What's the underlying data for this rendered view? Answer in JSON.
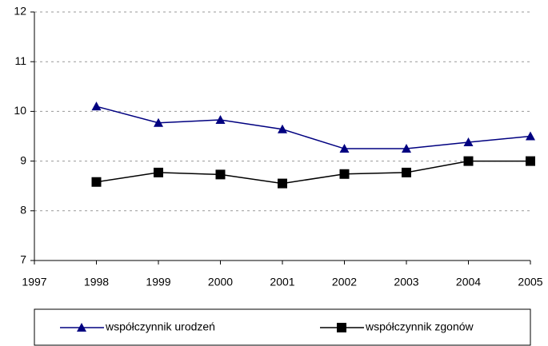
{
  "chart_data": {
    "type": "line",
    "x": [
      1998,
      1999,
      2000,
      2001,
      2002,
      2003,
      2004,
      2005
    ],
    "series": [
      {
        "name": "współczynnik urodzeń",
        "color": "#000080",
        "marker": "triangle",
        "values": [
          10.1,
          9.77,
          9.83,
          9.64,
          9.25,
          9.25,
          9.38,
          9.5
        ]
      },
      {
        "name": "współczynnik zgonów",
        "color": "#000000",
        "marker": "square",
        "values": [
          8.58,
          8.77,
          8.73,
          8.55,
          8.74,
          8.77,
          9.0,
          9.0
        ]
      }
    ],
    "xlim": [
      1997,
      2005
    ],
    "xticks": [
      1997,
      1998,
      1999,
      2000,
      2001,
      2002,
      2003,
      2004,
      2005
    ],
    "ylim": [
      7,
      12
    ],
    "yticks": [
      7,
      8,
      9,
      10,
      11,
      12
    ],
    "grid": true,
    "legend": "bottom"
  }
}
